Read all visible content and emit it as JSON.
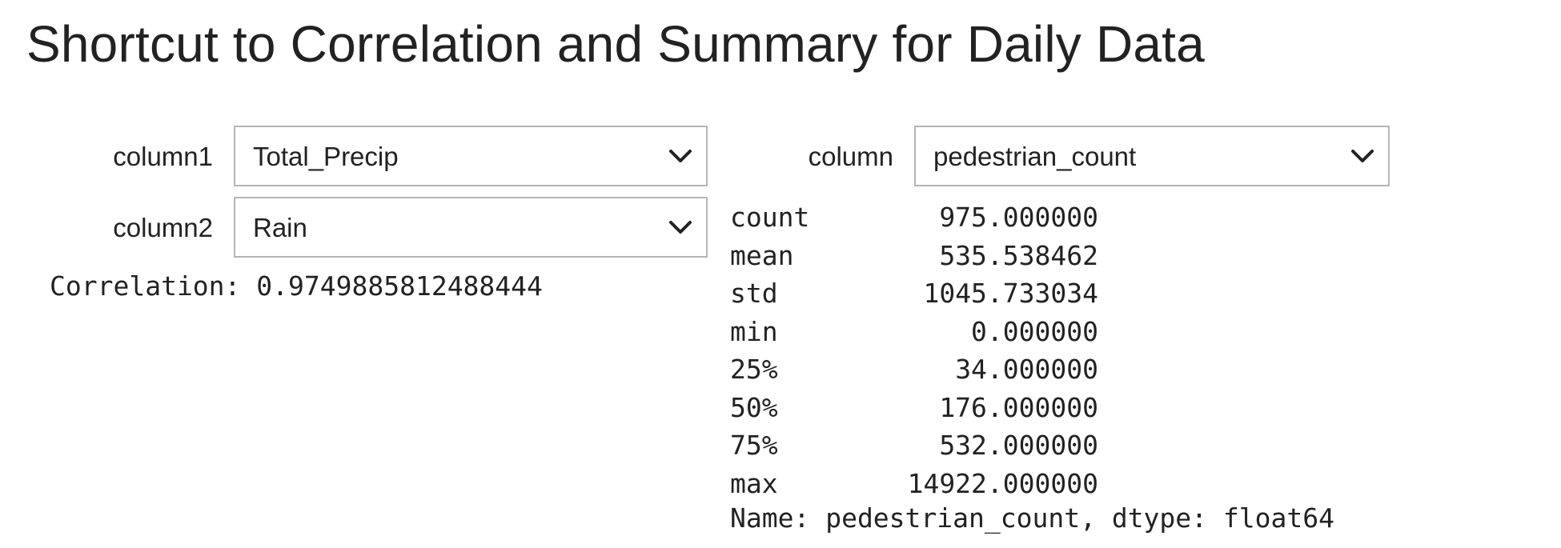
{
  "title": "Shortcut to Correlation and Summary for Daily Data",
  "correlation_widget": {
    "column1": {
      "label": "column1",
      "value": "Total_Precip",
      "icon": "chevron-down-icon"
    },
    "column2": {
      "label": "column2",
      "value": "Rain",
      "icon": "chevron-down-icon"
    },
    "correlation_text": "Correlation: 0.9749885812488444"
  },
  "summary_widget": {
    "column": {
      "label": "column",
      "value": "pedestrian_count",
      "icon": "chevron-down-icon"
    },
    "stats": [
      {
        "key": "count",
        "value": "975.000000"
      },
      {
        "key": "mean",
        "value": "535.538462"
      },
      {
        "key": "std",
        "value": "1045.733034"
      },
      {
        "key": "min",
        "value": "0.000000"
      },
      {
        "key": "25%",
        "value": "34.000000"
      },
      {
        "key": "50%",
        "value": "176.000000"
      },
      {
        "key": "75%",
        "value": "532.000000"
      },
      {
        "key": "max",
        "value": "14922.000000"
      }
    ],
    "name_line": "Name: pedestrian_count, dtype: float64"
  },
  "colors": {
    "text": "#222222",
    "dropdown_border": "#b5b5b5",
    "background": "#ffffff"
  }
}
